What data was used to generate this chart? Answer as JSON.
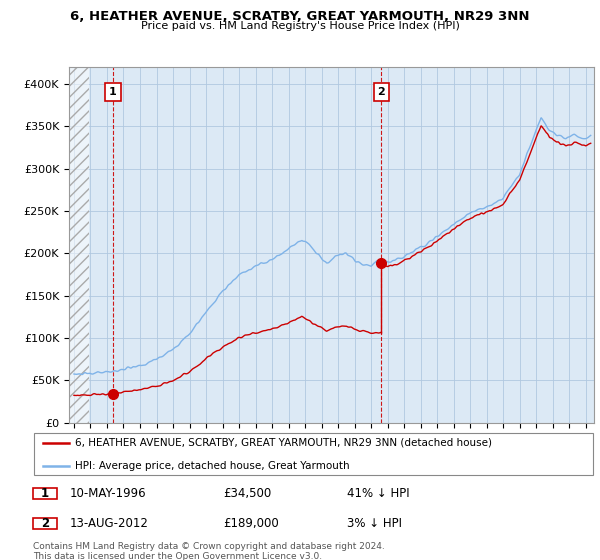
{
  "title_line1": "6, HEATHER AVENUE, SCRATBY, GREAT YARMOUTH, NR29 3NN",
  "title_line2": "Price paid vs. HM Land Registry's House Price Index (HPI)",
  "ylabel_ticks": [
    "£0",
    "£50K",
    "£100K",
    "£150K",
    "£200K",
    "£250K",
    "£300K",
    "£350K",
    "£400K"
  ],
  "ytick_values": [
    0,
    50000,
    100000,
    150000,
    200000,
    250000,
    300000,
    350000,
    400000
  ],
  "ylim": [
    0,
    420000
  ],
  "xlim_start": 1993.7,
  "xlim_end": 2025.5,
  "xlabel_ticks": [
    1994,
    1995,
    1996,
    1997,
    1998,
    1999,
    2000,
    2001,
    2002,
    2003,
    2004,
    2005,
    2006,
    2007,
    2008,
    2009,
    2010,
    2011,
    2012,
    2013,
    2014,
    2015,
    2016,
    2017,
    2018,
    2019,
    2020,
    2021,
    2022,
    2023,
    2024,
    2025
  ],
  "sale1_x": 1996.36,
  "sale1_y": 34500,
  "sale1_label": "1",
  "sale1_date": "10-MAY-1996",
  "sale1_price": "£34,500",
  "sale1_hpi": "41% ↓ HPI",
  "sale2_x": 2012.62,
  "sale2_y": 189000,
  "sale2_label": "2",
  "sale2_date": "13-AUG-2012",
  "sale2_price": "£189,000",
  "sale2_hpi": "3% ↓ HPI",
  "line_color_property": "#cc0000",
  "line_color_hpi": "#7fb3e8",
  "plot_bg_color": "#dce9f5",
  "legend_label_property": "6, HEATHER AVENUE, SCRATBY, GREAT YARMOUTH, NR29 3NN (detached house)",
  "legend_label_hpi": "HPI: Average price, detached house, Great Yarmouth",
  "footnote": "Contains HM Land Registry data © Crown copyright and database right 2024.\nThis data is licensed under the Open Government Licence v3.0.",
  "background_color": "#ffffff",
  "grid_color": "#b0c8e0",
  "hatch_region_end": 1994.92
}
